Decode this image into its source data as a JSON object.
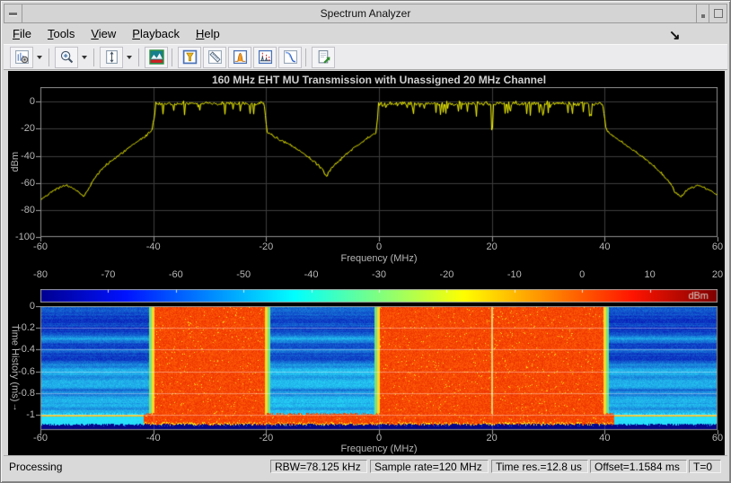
{
  "window": {
    "title": "Spectrum Analyzer"
  },
  "menu": {
    "items": [
      "File",
      "Tools",
      "View",
      "Playback",
      "Help"
    ]
  },
  "toolbar": {
    "icons": [
      "spectrum-settings",
      "zoom-in",
      "autoscale-y",
      "spectrum-spectrogram-view",
      "cursor-measurements",
      "signal-statistics",
      "peak-finder",
      "distortion-measurements",
      "ccdf-measurements",
      "export-script"
    ]
  },
  "colors": {
    "trace": "#ffff00",
    "plot_bg": "#000000",
    "grid": "#3c3c3c",
    "tick_label": "#b6b6b6",
    "title_text": "#d0d0d0",
    "signal_orange": "#f64802",
    "noise_blue": "#0a1cb9",
    "bottom_navy": "#000086"
  },
  "spectrum": {
    "chart": {
      "type": "line",
      "title": "160 MHz EHT MU Transmission with Unassigned 20 MHz Channel",
      "xlabel": "Frequency (MHz)",
      "ylabel": "dBm",
      "xlim": [
        -60,
        60
      ],
      "ylim": [
        -100,
        10.8
      ],
      "xticks": [
        -60,
        -40,
        -20,
        0,
        20,
        40,
        60
      ],
      "yticks": [
        0,
        -20,
        -40,
        -60,
        -80,
        -100
      ],
      "plateau_level": -1.5,
      "plateaus": [
        {
          "from": -39.6,
          "to": -20.4
        },
        {
          "from": -0.1,
          "to": 39.6
        }
      ],
      "notch20": {
        "freq": 20,
        "level": -19
      },
      "left_tail": [
        [
          -60,
          -72.5
        ],
        [
          -58,
          -66
        ],
        [
          -56.5,
          -63
        ],
        [
          -55.5,
          -62
        ],
        [
          -54.5,
          -63.5
        ],
        [
          -53.2,
          -67
        ],
        [
          -52.4,
          -70
        ],
        [
          -51.8,
          -66
        ],
        [
          -51,
          -60
        ],
        [
          -50,
          -54
        ],
        [
          -48.5,
          -47
        ],
        [
          -47,
          -42
        ],
        [
          -45,
          -36
        ],
        [
          -43,
          -30
        ],
        [
          -41.5,
          -25.5
        ],
        [
          -40.3,
          -21
        ],
        [
          -39.6,
          -3
        ]
      ],
      "notch": [
        [
          -20.4,
          -3
        ],
        [
          -19.9,
          -22
        ],
        [
          -18.5,
          -26.5
        ],
        [
          -17,
          -29.5
        ],
        [
          -15,
          -34
        ],
        [
          -13,
          -39.5
        ],
        [
          -11,
          -46.5
        ],
        [
          -10,
          -51
        ],
        [
          -9.4,
          -55
        ],
        [
          -8.8,
          -51
        ],
        [
          -8,
          -47
        ],
        [
          -6.5,
          -41
        ],
        [
          -5,
          -35.5
        ],
        [
          -3,
          -29.5
        ],
        [
          -1.5,
          -25.5
        ],
        [
          -0.6,
          -22.5
        ],
        [
          -0.1,
          -3
        ]
      ],
      "right_tail": [
        [
          39.6,
          -3
        ],
        [
          40.2,
          -21
        ],
        [
          41.5,
          -25.5
        ],
        [
          43,
          -30
        ],
        [
          45,
          -36
        ],
        [
          47,
          -42
        ],
        [
          48.5,
          -47
        ],
        [
          50,
          -53
        ],
        [
          51.5,
          -60
        ],
        [
          52.6,
          -68
        ],
        [
          53.5,
          -70
        ],
        [
          54.3,
          -66
        ],
        [
          55.5,
          -63
        ],
        [
          56.5,
          -62
        ],
        [
          57.5,
          -63.5
        ],
        [
          58.5,
          -65.5
        ],
        [
          60,
          -69
        ]
      ]
    }
  },
  "colorbar": {
    "label": "dBm",
    "ticks": [
      -80,
      -70,
      -60,
      -50,
      -40,
      -30,
      -20,
      -10,
      0,
      10,
      20
    ],
    "range": [
      -80,
      20
    ],
    "stops": [
      [
        0,
        "#000090"
      ],
      [
        0.125,
        "#0012ff"
      ],
      [
        0.375,
        "#00ffff"
      ],
      [
        0.625,
        "#ffff00"
      ],
      [
        0.875,
        "#ff1400"
      ],
      [
        1,
        "#7d0000"
      ]
    ]
  },
  "spectrogram": {
    "chart": {
      "type": "spectrogram",
      "ylabel": "Time History (ms)",
      "ylabel_arrow": "↓",
      "xlabel": "Frequency (MHz)",
      "xlim": [
        -60,
        60
      ],
      "xticks": [
        -60,
        -40,
        -20,
        0,
        20,
        40,
        60
      ],
      "yticks": [
        0,
        -0.2,
        -0.4,
        -0.6,
        -0.8,
        -1
      ],
      "time_span_ms": [
        0,
        -1.14
      ],
      "signal_blocks_mhz": [
        [
          -40,
          -20
        ],
        [
          0,
          40
        ]
      ],
      "unassigned_channel_mhz": [
        -20,
        0
      ],
      "notch_line_mhz": 20,
      "wideband_burst": {
        "time_ms": [
          -0.98,
          -1.09
        ],
        "freq_mhz": [
          -41.7,
          41.7
        ]
      },
      "blank_band_time_ms": [
        -1.09,
        -1.14
      ]
    }
  },
  "statusbar": {
    "status": "Processing",
    "panels": [
      "RBW=78.125 kHz",
      "Sample rate=120 MHz",
      "Time res.=12.8 us",
      "Offset=1.1584 ms",
      "T=0"
    ]
  },
  "cursor": {
    "glyph": "↘"
  }
}
